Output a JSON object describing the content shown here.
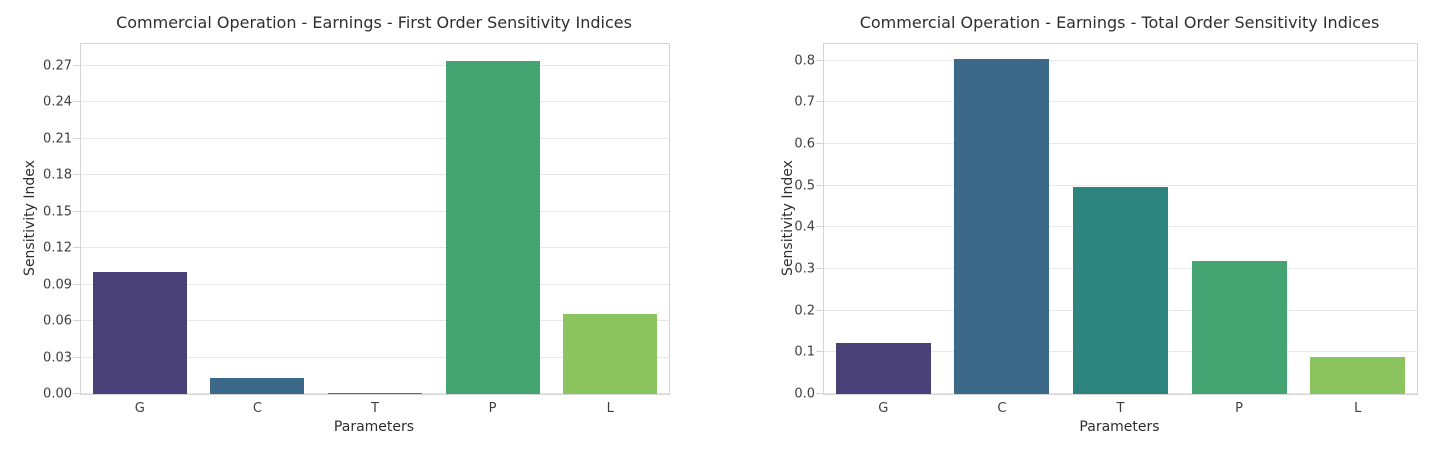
{
  "colors": {
    "background": "#ffffff",
    "grid": "#e8e8e8",
    "spine": "#d4d4d4",
    "title_text": "#2e2e2e",
    "tick_text": "#3f3f3f"
  },
  "chart_data": [
    {
      "type": "bar",
      "title": "Commercial Operation - Earnings - First Order Sensitivity Indices",
      "xlabel": "Parameters",
      "ylabel": "Sensitivity Index",
      "categories": [
        "G",
        "C",
        "T",
        "P",
        "L"
      ],
      "values": [
        0.1,
        0.013,
        0.001,
        0.274,
        0.066
      ],
      "bar_colors": [
        "#494078",
        "#3c6889",
        "#2d837e",
        "#44a573",
        "#8cc45f"
      ],
      "ylim": [
        0,
        0.288
      ],
      "grid": true,
      "legend": "none",
      "yticks": [
        {
          "label": "0.00",
          "value": 0.0
        },
        {
          "label": "0.03",
          "value": 0.03
        },
        {
          "label": "0.06",
          "value": 0.06
        },
        {
          "label": "0.09",
          "value": 0.09
        },
        {
          "label": "0.12",
          "value": 0.12
        },
        {
          "label": "0.15",
          "value": 0.15
        },
        {
          "label": "0.18",
          "value": 0.18
        },
        {
          "label": "0.21",
          "value": 0.21
        },
        {
          "label": "0.24",
          "value": 0.24
        },
        {
          "label": "0.27",
          "value": 0.27
        }
      ]
    },
    {
      "type": "bar",
      "title": "Commercial Operation - Earnings - Total Order Sensitivity Indices",
      "xlabel": "Parameters",
      "ylabel": "Sensitivity Index",
      "categories": [
        "G",
        "C",
        "T",
        "P",
        "L"
      ],
      "values": [
        0.123,
        0.805,
        0.496,
        0.319,
        0.089
      ],
      "bar_colors": [
        "#494078",
        "#3c6889",
        "#2d837e",
        "#44a573",
        "#8cc45f"
      ],
      "ylim": [
        0,
        0.84
      ],
      "grid": true,
      "legend": "none",
      "yticks": [
        {
          "label": "0.0",
          "value": 0.0
        },
        {
          "label": "0.1",
          "value": 0.1
        },
        {
          "label": "0.2",
          "value": 0.2
        },
        {
          "label": "0.3",
          "value": 0.3
        },
        {
          "label": "0.4",
          "value": 0.4
        },
        {
          "label": "0.5",
          "value": 0.5
        },
        {
          "label": "0.6",
          "value": 0.6
        },
        {
          "label": "0.7",
          "value": 0.7
        },
        {
          "label": "0.8",
          "value": 0.8
        }
      ]
    }
  ]
}
